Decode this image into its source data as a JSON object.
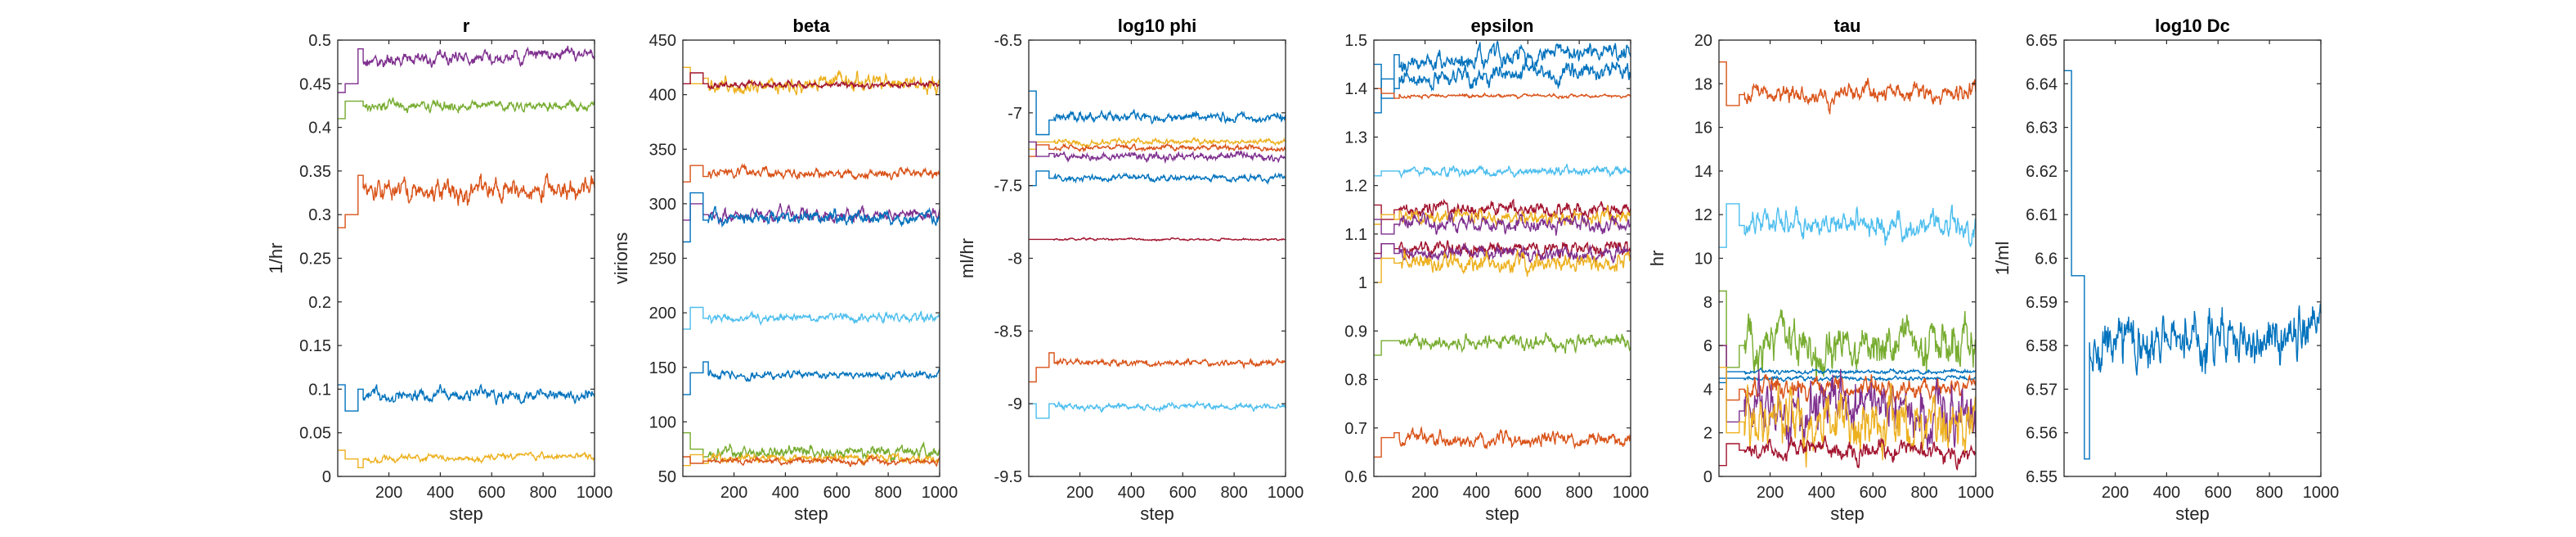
{
  "figure": {
    "panel_count": 6
  },
  "colors": {
    "blue": "#0072BD",
    "orange": "#D95319",
    "yellow": "#EDB120",
    "purple": "#7E2F8E",
    "green": "#77AC30",
    "cyan": "#4DBEEE",
    "maroon": "#A2142F"
  },
  "chart_data": [
    {
      "type": "line",
      "title": "r",
      "xlabel": "step",
      "ylabel": "1/hr",
      "xlim": [
        1,
        1000
      ],
      "ylim": [
        0,
        0.5
      ],
      "xticks": [
        200,
        400,
        600,
        800,
        1000
      ],
      "yticks": [
        0,
        0.05,
        0.1,
        0.15,
        0.2,
        0.25,
        0.3,
        0.35,
        0.4,
        0.45,
        0.5
      ],
      "xtick_labels": [
        "200",
        "400",
        "600",
        "800",
        "1000"
      ],
      "ytick_labels": [
        "0",
        "0.05",
        "0.1",
        "0.15",
        "0.2",
        "0.25",
        "0.3",
        "0.35",
        "0.4",
        "0.45",
        "0.5"
      ],
      "grid": false,
      "series": [
        {
          "color": "#7E2F8E",
          "initial": [
            0.44,
            0.45,
            0.49
          ],
          "level": 0.475,
          "trend": 0.01,
          "noise": 0.004
        },
        {
          "color": "#77AC30",
          "initial": [
            0.41,
            0.43,
            0.43
          ],
          "level": 0.425,
          "trend": 0,
          "noise": 0.003
        },
        {
          "color": "#D95319",
          "initial": [
            0.285,
            0.3,
            0.345
          ],
          "level": 0.325,
          "trend": 0.005,
          "noise": 0.007
        },
        {
          "color": "#0072BD",
          "initial": [
            0.105,
            0.075,
            0.1
          ],
          "level": 0.093,
          "trend": 0,
          "noise": 0.004
        },
        {
          "color": "#EDB120",
          "initial": [
            0.03,
            0.02,
            0.01
          ],
          "level": 0.02,
          "trend": 0.003,
          "noise": 0.002
        }
      ]
    },
    {
      "type": "line",
      "title": "beta",
      "xlabel": "step",
      "ylabel": "virions",
      "xlim": [
        1,
        1000
      ],
      "ylim": [
        50,
        450
      ],
      "xticks": [
        200,
        400,
        600,
        800,
        1000
      ],
      "yticks": [
        50,
        100,
        150,
        200,
        250,
        300,
        350,
        400,
        450
      ],
      "xtick_labels": [
        "200",
        "400",
        "600",
        "800",
        "1000"
      ],
      "ytick_labels": [
        "50",
        "100",
        "150",
        "200",
        "250",
        "300",
        "350",
        "400",
        "450"
      ],
      "grid": false,
      "series": [
        {
          "color": "#EDB120",
          "initial": [
            425,
            410,
            415
          ],
          "level": 410,
          "trend": 0,
          "noise": 4
        },
        {
          "color": "#A2142F",
          "initial": [
            410,
            420,
            410
          ],
          "level": 409,
          "trend": 0,
          "noise": 1.5
        },
        {
          "color": "#D95319",
          "initial": [
            320,
            335,
            325
          ],
          "level": 328,
          "trend": 0,
          "noise": 2.5
        },
        {
          "color": "#7E2F8E",
          "initial": [
            285,
            300,
            290
          ],
          "level": 290,
          "trend": 0,
          "noise": 3
        },
        {
          "color": "#0072BD",
          "initial": [
            265,
            310,
            285
          ],
          "level": 287,
          "trend": 0,
          "noise": 3
        },
        {
          "color": "#4DBEEE",
          "initial": [
            185,
            205,
            195
          ],
          "level": 195,
          "trend": 0,
          "noise": 2
        },
        {
          "color": "#0072BD",
          "initial": [
            125,
            145,
            155
          ],
          "level": 143,
          "trend": 0,
          "noise": 2
        },
        {
          "color": "#77AC30",
          "initial": [
            90,
            75,
            68
          ],
          "level": 72,
          "trend": 0,
          "noise": 3
        },
        {
          "color": "#EDB120",
          "initial": [
            60,
            70,
            62
          ],
          "level": 67,
          "trend": 0,
          "noise": 2
        },
        {
          "color": "#D95319",
          "initial": [
            68,
            62,
            64
          ],
          "level": 64,
          "trend": 0,
          "noise": 1.5
        }
      ]
    },
    {
      "type": "line",
      "title": "log10 phi",
      "xlabel": "step",
      "ylabel": "ml/hr",
      "xlim": [
        1,
        1000
      ],
      "ylim": [
        -9.5,
        -6.5
      ],
      "xticks": [
        200,
        400,
        600,
        800,
        1000
      ],
      "yticks": [
        -9.5,
        -9,
        -8.5,
        -8,
        -7.5,
        -7,
        -6.5
      ],
      "xtick_labels": [
        "200",
        "400",
        "600",
        "800",
        "1000"
      ],
      "ytick_labels": [
        "-9.5",
        "-9",
        "-8.5",
        "-8",
        "-7.5",
        "-7",
        "-6.5"
      ],
      "grid": false,
      "series": [
        {
          "color": "#0072BD",
          "initial": [
            -6.85,
            -7.15,
            -7.05
          ],
          "level": -7.03,
          "trend": 0,
          "noise": 0.018
        },
        {
          "color": "#EDB120",
          "initial": [
            -7.25,
            -7.2,
            -7.2
          ],
          "level": -7.2,
          "trend": 0,
          "noise": 0.01
        },
        {
          "color": "#D95319",
          "initial": [
            -7.3,
            -7.22,
            -7.25
          ],
          "level": -7.24,
          "trend": 0,
          "noise": 0.01
        },
        {
          "color": "#7E2F8E",
          "initial": [
            -7.2,
            -7.3,
            -7.28
          ],
          "level": -7.3,
          "trend": 0,
          "noise": 0.015
        },
        {
          "color": "#0072BD",
          "initial": [
            -7.5,
            -7.4,
            -7.45
          ],
          "level": -7.45,
          "trend": 0,
          "noise": 0.012
        },
        {
          "color": "#A2142F",
          "initial": [
            -7.87,
            -7.87,
            -7.87
          ],
          "level": -7.87,
          "trend": 0,
          "noise": 0.004
        },
        {
          "color": "#D95319",
          "initial": [
            -8.85,
            -8.75,
            -8.65
          ],
          "level": -8.72,
          "trend": 0,
          "noise": 0.012
        },
        {
          "color": "#4DBEEE",
          "initial": [
            -9.0,
            -9.1,
            -9.0
          ],
          "level": -9.02,
          "trend": 0,
          "noise": 0.012
        }
      ]
    },
    {
      "type": "line",
      "title": "epsilon",
      "xlabel": "step",
      "ylabel": "",
      "xlim": [
        1,
        1000
      ],
      "ylim": [
        0.6,
        1.5
      ],
      "xticks": [
        200,
        400,
        600,
        800,
        1000
      ],
      "yticks": [
        0.6,
        0.7,
        0.8,
        0.9,
        1,
        1.1,
        1.2,
        1.3,
        1.4,
        1.5
      ],
      "xtick_labels": [
        "200",
        "400",
        "600",
        "800",
        "1000"
      ],
      "ytick_labels": [
        "0.6",
        "0.7",
        "0.8",
        "0.9",
        "1",
        "1.1",
        "1.2",
        "1.3",
        "1.4",
        "1.5"
      ],
      "grid": false,
      "series": [
        {
          "color": "#0072BD",
          "initial": [
            1.45,
            1.38,
            1.47
          ],
          "level": 1.45,
          "trend": 0.03,
          "noise": 0.01
        },
        {
          "color": "#0072BD",
          "initial": [
            1.35,
            1.42,
            1.4
          ],
          "level": 1.42,
          "trend": 0.02,
          "noise": 0.01
        },
        {
          "color": "#D95319",
          "initial": [
            1.4,
            1.39,
            1.38
          ],
          "level": 1.385,
          "trend": 0,
          "noise": 0.002
        },
        {
          "color": "#4DBEEE",
          "initial": [
            1.22,
            1.23,
            1.23
          ],
          "level": 1.23,
          "trend": 0,
          "noise": 0.005
        },
        {
          "color": "#A2142F",
          "initial": [
            1.16,
            1.13,
            1.15
          ],
          "level": 1.15,
          "trend": 0,
          "noise": 0.008
        },
        {
          "color": "#EDB120",
          "initial": [
            1.12,
            1.14,
            1.13
          ],
          "level": 1.135,
          "trend": 0,
          "noise": 0.008
        },
        {
          "color": "#7E2F8E",
          "initial": [
            1.13,
            1.1,
            1.12
          ],
          "level": 1.12,
          "trend": 0,
          "noise": 0.008
        },
        {
          "color": "#A2142F",
          "initial": [
            1.06,
            1.08,
            1.07
          ],
          "level": 1.07,
          "trend": 0,
          "noise": 0.008
        },
        {
          "color": "#7E2F8E",
          "initial": [
            1.05,
            1.08,
            1.06
          ],
          "level": 1.06,
          "trend": 0,
          "noise": 0.008
        },
        {
          "color": "#EDB120",
          "initial": [
            1.0,
            1.05,
            1.04
          ],
          "level": 1.04,
          "trend": 0,
          "noise": 0.01
        },
        {
          "color": "#77AC30",
          "initial": [
            0.85,
            0.88,
            0.88
          ],
          "level": 0.875,
          "trend": 0,
          "noise": 0.008
        },
        {
          "color": "#D95319",
          "initial": [
            0.64,
            0.68,
            0.69
          ],
          "level": 0.675,
          "trend": 0,
          "noise": 0.008
        }
      ]
    },
    {
      "type": "line",
      "title": "tau",
      "xlabel": "step",
      "ylabel": "hr",
      "xlim": [
        1,
        1000
      ],
      "ylim": [
        0,
        20
      ],
      "xticks": [
        200,
        400,
        600,
        800,
        1000
      ],
      "yticks": [
        0,
        2,
        4,
        6,
        8,
        10,
        12,
        14,
        16,
        18,
        20
      ],
      "xtick_labels": [
        "200",
        "400",
        "600",
        "800",
        "1000"
      ],
      "ytick_labels": [
        "0",
        "2",
        "4",
        "6",
        "8",
        "10",
        "12",
        "14",
        "16",
        "18",
        "20"
      ],
      "grid": false,
      "series": [
        {
          "color": "#D95319",
          "initial": [
            19,
            17,
            17.5
          ],
          "level": 17.5,
          "trend": 0,
          "noise": 0.25
        },
        {
          "color": "#4DBEEE",
          "initial": [
            10.5,
            12.5,
            11.5
          ],
          "level": 11.5,
          "trend": 0,
          "noise": 0.3
        },
        {
          "color": "#77AC30",
          "initial": [
            8.5,
            5,
            6
          ],
          "level": 6,
          "trend": 0,
          "noise": 0.6
        },
        {
          "color": "#0072BD",
          "initial": [
            4.5,
            4.8,
            4.8
          ],
          "level": 4.8,
          "trend": 0,
          "noise": 0.05
        },
        {
          "color": "#0072BD",
          "initial": [
            4.3,
            4.5,
            4.5
          ],
          "level": 4.5,
          "trend": 0,
          "noise": 0.05
        },
        {
          "color": "#D95319",
          "initial": [
            6,
            3.5,
            4
          ],
          "level": 4,
          "trend": 0,
          "noise": 0.25
        },
        {
          "color": "#7E2F8E",
          "initial": [
            6,
            2.5,
            3
          ],
          "level": 3,
          "trend": 0,
          "noise": 0.7
        },
        {
          "color": "#EDB120",
          "initial": [
            5,
            2,
            2.5
          ],
          "level": 2.5,
          "trend": 0,
          "noise": 0.7
        },
        {
          "color": "#A2142F",
          "initial": [
            0.5,
            1.5,
            1.2
          ],
          "level": 1.2,
          "trend": 0,
          "noise": 0.25
        }
      ]
    },
    {
      "type": "line",
      "title": "log10 Dc",
      "xlabel": "step",
      "ylabel": "1/ml",
      "xlim": [
        1,
        1000
      ],
      "ylim": [
        6.55,
        6.65
      ],
      "xticks": [
        200,
        400,
        600,
        800,
        1000
      ],
      "yticks": [
        6.55,
        6.56,
        6.57,
        6.58,
        6.59,
        6.6,
        6.61,
        6.62,
        6.63,
        6.64,
        6.65
      ],
      "xtick_labels": [
        "200",
        "400",
        "600",
        "800",
        "1000"
      ],
      "ytick_labels": [
        "6.55",
        "6.56",
        "6.57",
        "6.58",
        "6.59",
        "6.6",
        "6.61",
        "6.62",
        "6.63",
        "6.64",
        "6.65"
      ],
      "grid": false,
      "series": [
        {
          "color": "#0072BD",
          "initial": [
            6.643,
            6.596,
            6.554
          ],
          "level": 6.58,
          "trend": 0.003,
          "noise": 0.0035
        }
      ]
    }
  ]
}
